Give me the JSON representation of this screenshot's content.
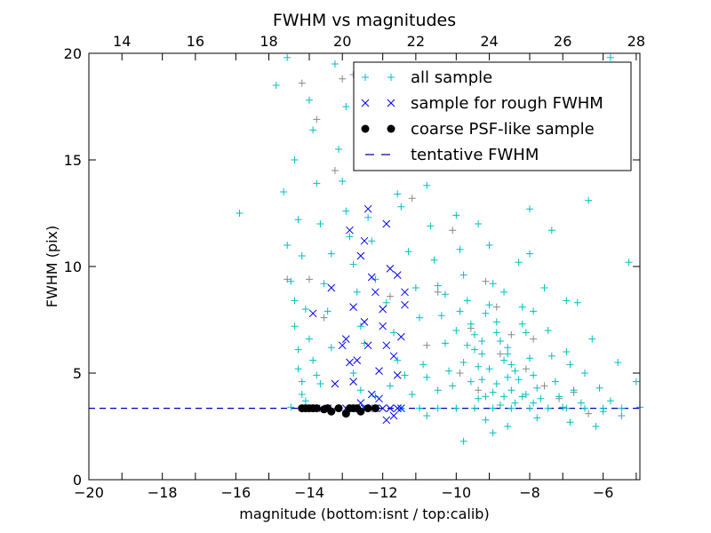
{
  "chart_data": {
    "type": "scatter",
    "title": "FWHM vs magnitudes",
    "xlabel": "magnitude (bottom:isnt / top:calib)",
    "ylabel": "FWHM (pix)",
    "xlim": [
      -20,
      -5
    ],
    "ylim": [
      0,
      20
    ],
    "top_xlim": [
      13.1,
      28.1
    ],
    "xticks": [
      -20,
      -18,
      -16,
      -14,
      -12,
      -10,
      -8,
      -6
    ],
    "xtick_labels": [
      "−20",
      "−18",
      "−16",
      "−14",
      "−12",
      "−10",
      "−8",
      "−6"
    ],
    "top_xticks": [
      14,
      16,
      18,
      20,
      22,
      24,
      26,
      28
    ],
    "top_xtick_labels": [
      "14",
      "16",
      "18",
      "20",
      "22",
      "24",
      "26",
      "28"
    ],
    "yticks": [
      0,
      5,
      10,
      15,
      20
    ],
    "ytick_labels": [
      "0",
      "5",
      "10",
      "15",
      "20"
    ],
    "grid": false,
    "legend_position": "top-right",
    "legend": [
      {
        "label": "all sample",
        "marker": "plus",
        "color": "#00bfbf"
      },
      {
        "label": "sample for rough FWHM",
        "marker": "x",
        "color": "#0000ff"
      },
      {
        "label": "coarse PSF-like sample",
        "marker": "dot",
        "color": "#000000"
      },
      {
        "label": "tentative FWHM",
        "marker": "dash",
        "color": "#0000bb"
      }
    ],
    "tentative_fwhm": 3.35,
    "series": [
      {
        "name": "other sample",
        "marker": "plus",
        "color": "#888888",
        "points": [
          [
            -14.2,
            18.6
          ],
          [
            -13.8,
            16.9
          ],
          [
            -13.3,
            14.5
          ],
          [
            -12.8,
            19.0
          ],
          [
            -12.3,
            15.8
          ],
          [
            -11.2,
            13.2
          ],
          [
            -10.5,
            8.8
          ],
          [
            -10.1,
            11.7
          ],
          [
            -9.6,
            7.1
          ],
          [
            -9.2,
            9.3
          ],
          [
            -8.8,
            5.9
          ],
          [
            -8.5,
            6.8
          ],
          [
            -8.1,
            5.2
          ],
          [
            -7.6,
            4.4
          ],
          [
            -7.2,
            3.8
          ],
          [
            -6.8,
            4.1
          ],
          [
            -14.0,
            9.4
          ],
          [
            -13.6,
            7.6
          ],
          [
            -11.8,
            8.6
          ],
          [
            -10.8,
            6.3
          ],
          [
            -9.9,
            5.0
          ],
          [
            -9.4,
            4.2
          ],
          [
            -12.5,
            17.4
          ],
          [
            -13.1,
            18.8
          ],
          [
            -14.6,
            9.4
          ],
          [
            -8.9,
            8.1
          ],
          [
            -7.9,
            6.6
          ],
          [
            -6.4,
            3.1
          ]
        ]
      },
      {
        "name": "all sample",
        "marker": "plus",
        "color": "#00bfbf",
        "points": [
          [
            -15.9,
            12.5
          ],
          [
            -14.9,
            18.5
          ],
          [
            -14.7,
            13.5
          ],
          [
            -14.6,
            11.0
          ],
          [
            -14.5,
            9.3
          ],
          [
            -14.4,
            8.4
          ],
          [
            -14.4,
            7.2
          ],
          [
            -14.3,
            6.1
          ],
          [
            -14.3,
            5.2
          ],
          [
            -14.2,
            4.6
          ],
          [
            -14.2,
            4.0
          ],
          [
            -14.1,
            3.7
          ],
          [
            -14.6,
            19.8
          ],
          [
            -14.4,
            15.0
          ],
          [
            -14.3,
            12.2
          ],
          [
            -14.2,
            10.5
          ],
          [
            -14.1,
            8.0
          ],
          [
            -14.0,
            6.6
          ],
          [
            -13.9,
            5.6
          ],
          [
            -13.8,
            4.9
          ],
          [
            -14.0,
            17.8
          ],
          [
            -13.9,
            16.4
          ],
          [
            -13.8,
            13.9
          ],
          [
            -13.7,
            12.0
          ],
          [
            -13.6,
            9.2
          ],
          [
            -13.5,
            7.9
          ],
          [
            -13.4,
            6.2
          ],
          [
            -13.3,
            19.5
          ],
          [
            -13.2,
            15.5
          ],
          [
            -13.1,
            14.0
          ],
          [
            -13.0,
            12.6
          ],
          [
            -12.9,
            11.4
          ],
          [
            -12.8,
            10.1
          ],
          [
            -12.7,
            8.8
          ],
          [
            -12.6,
            7.2
          ],
          [
            -12.5,
            6.4
          ],
          [
            -12.4,
            12.3
          ],
          [
            -12.3,
            11.2
          ],
          [
            -12.2,
            9.4
          ],
          [
            -11.9,
            8.3
          ],
          [
            -11.7,
            6.9
          ],
          [
            -11.6,
            5.6
          ],
          [
            -11.5,
            12.8
          ],
          [
            -11.3,
            10.7
          ],
          [
            -11.1,
            9.0
          ],
          [
            -11.0,
            7.6
          ],
          [
            -10.9,
            5.4
          ],
          [
            -10.8,
            13.8
          ],
          [
            -10.7,
            11.9
          ],
          [
            -10.6,
            10.3
          ],
          [
            -10.5,
            9.1
          ],
          [
            -10.4,
            7.7
          ],
          [
            -10.3,
            6.4
          ],
          [
            -10.2,
            5.1
          ],
          [
            -10.1,
            4.4
          ],
          [
            -10.0,
            12.4
          ],
          [
            -9.9,
            10.8
          ],
          [
            -9.8,
            9.6
          ],
          [
            -9.7,
            8.4
          ],
          [
            -9.6,
            7.3
          ],
          [
            -9.5,
            6.1
          ],
          [
            -9.4,
            5.3
          ],
          [
            -9.3,
            4.7
          ],
          [
            -9.2,
            3.9
          ],
          [
            -9.1,
            11.0
          ],
          [
            -9.0,
            9.2
          ],
          [
            -8.9,
            7.4
          ],
          [
            -8.8,
            6.5
          ],
          [
            -8.7,
            5.6
          ],
          [
            -8.6,
            4.8
          ],
          [
            -8.5,
            4.2
          ],
          [
            -8.4,
            3.6
          ],
          [
            -8.3,
            10.2
          ],
          [
            -8.2,
            8.1
          ],
          [
            -8.1,
            6.9
          ],
          [
            -8.0,
            5.7
          ],
          [
            -7.9,
            4.9
          ],
          [
            -7.8,
            4.3
          ],
          [
            -7.7,
            3.8
          ],
          [
            -7.6,
            9.0
          ],
          [
            -7.5,
            7.0
          ],
          [
            -7.4,
            5.8
          ],
          [
            -7.3,
            4.6
          ],
          [
            -7.2,
            3.9
          ],
          [
            -7.1,
            3.4
          ],
          [
            -7.0,
            8.4
          ],
          [
            -6.9,
            5.4
          ],
          [
            -6.8,
            4.2
          ],
          [
            -6.6,
            3.6
          ],
          [
            -6.4,
            13.1
          ],
          [
            -6.3,
            6.6
          ],
          [
            -6.1,
            4.3
          ],
          [
            -6.0,
            3.2
          ],
          [
            -5.8,
            3.7
          ],
          [
            -5.5,
            3.0
          ],
          [
            -5.3,
            10.2
          ],
          [
            -5.1,
            4.6
          ],
          [
            -5.0,
            3.4
          ],
          [
            -9.5,
            6.8
          ],
          [
            -9.3,
            5.9
          ],
          [
            -9.1,
            5.2
          ],
          [
            -8.9,
            4.5
          ],
          [
            -8.7,
            3.9
          ],
          [
            -8.5,
            5.4
          ],
          [
            -8.3,
            4.7
          ],
          [
            -8.1,
            4.0
          ],
          [
            -9.8,
            5.5
          ],
          [
            -9.6,
            4.6
          ],
          [
            -9.4,
            3.8
          ],
          [
            -9.0,
            4.1
          ],
          [
            -8.8,
            3.5
          ],
          [
            -8.6,
            6.2
          ],
          [
            -8.4,
            5.1
          ],
          [
            -8.2,
            3.9
          ],
          [
            -7.9,
            3.6
          ],
          [
            -10.5,
            4.2
          ],
          [
            -10.8,
            4.8
          ],
          [
            -11.2,
            4.0
          ],
          [
            -11.8,
            4.4
          ],
          [
            -12.2,
            3.9
          ],
          [
            -10.0,
            7.0
          ],
          [
            -9.7,
            6.3
          ],
          [
            -9.2,
            7.8
          ],
          [
            -8.0,
            10.6
          ],
          [
            -7.4,
            11.7
          ],
          [
            -6.7,
            8.3
          ],
          [
            -5.6,
            5.5
          ],
          [
            -7.0,
            6.0
          ],
          [
            -6.5,
            5.0
          ],
          [
            -12.0,
            18.0
          ],
          [
            -11.0,
            15.8
          ],
          [
            -10.2,
            14.8
          ],
          [
            -9.4,
            12.0
          ],
          [
            -8.0,
            12.7
          ],
          [
            -7.6,
            14.7
          ],
          [
            -6.8,
            16.8
          ],
          [
            -5.8,
            19.8
          ],
          [
            -7.3,
            19.1
          ],
          [
            -8.5,
            15.4
          ],
          [
            -11.6,
            13.4
          ],
          [
            -13.0,
            17.5
          ],
          [
            -12.6,
            16.0
          ],
          [
            -13.4,
            10.6
          ],
          [
            -12.8,
            5.0
          ],
          [
            -13.7,
            4.5
          ],
          [
            -14.5,
            3.4
          ],
          [
            -13.5,
            3.35
          ],
          [
            -12.5,
            3.35
          ],
          [
            -11.5,
            3.35
          ],
          [
            -11.0,
            3.35
          ],
          [
            -10.5,
            3.35
          ],
          [
            -10.0,
            3.35
          ],
          [
            -9.5,
            3.35
          ],
          [
            -9.0,
            3.35
          ],
          [
            -8.5,
            3.35
          ],
          [
            -8.0,
            3.35
          ],
          [
            -7.5,
            3.35
          ],
          [
            -7.0,
            3.35
          ],
          [
            -6.5,
            3.35
          ],
          [
            -6.0,
            3.35
          ],
          [
            -5.5,
            3.35
          ],
          [
            -9.2,
            2.8
          ],
          [
            -8.6,
            2.5
          ],
          [
            -9.8,
            1.8
          ],
          [
            -7.8,
            2.9
          ],
          [
            -6.9,
            2.7
          ],
          [
            -6.2,
            2.5
          ],
          [
            -10.8,
            3.0
          ],
          [
            -9.0,
            2.2
          ],
          [
            -12.6,
            4.2
          ],
          [
            -11.4,
            4.9
          ],
          [
            -8.7,
            8.8
          ],
          [
            -9.1,
            8.2
          ],
          [
            -10.3,
            8.7
          ],
          [
            -9.9,
            7.9
          ],
          [
            -8.2,
            7.3
          ],
          [
            -7.9,
            7.9
          ],
          [
            -9.3,
            6.5
          ],
          [
            -8.6,
            5.9
          ],
          [
            -8.9,
            6.9
          ]
        ]
      },
      {
        "name": "sample for rough FWHM",
        "marker": "x",
        "color": "#0000ff",
        "points": [
          [
            -13.9,
            7.8
          ],
          [
            -13.4,
            9.0
          ],
          [
            -13.3,
            4.5
          ],
          [
            -13.1,
            6.3
          ],
          [
            -13.0,
            6.6
          ],
          [
            -12.9,
            11.7
          ],
          [
            -12.8,
            8.1
          ],
          [
            -12.7,
            5.6
          ],
          [
            -12.6,
            10.5
          ],
          [
            -12.5,
            11.2
          ],
          [
            -12.4,
            12.7
          ],
          [
            -12.3,
            9.5
          ],
          [
            -12.2,
            8.8
          ],
          [
            -12.1,
            5.1
          ],
          [
            -12.0,
            8.0
          ],
          [
            -11.9,
            12.0
          ],
          [
            -11.8,
            9.9
          ],
          [
            -11.6,
            9.6
          ],
          [
            -11.5,
            6.7
          ],
          [
            -11.4,
            8.8
          ],
          [
            -12.4,
            6.3
          ],
          [
            -12.0,
            7.2
          ],
          [
            -11.7,
            5.8
          ],
          [
            -11.6,
            4.9
          ],
          [
            -12.8,
            4.6
          ],
          [
            -12.3,
            4.0
          ],
          [
            -12.1,
            3.8
          ],
          [
            -11.9,
            2.8
          ],
          [
            -11.7,
            3.0
          ],
          [
            -12.6,
            3.6
          ],
          [
            -12.2,
            3.35
          ],
          [
            -13.5,
            3.35
          ],
          [
            -13.0,
            3.35
          ],
          [
            -12.5,
            3.35
          ],
          [
            -12.0,
            3.35
          ],
          [
            -11.8,
            3.35
          ],
          [
            -11.6,
            3.35
          ],
          [
            -11.5,
            3.35
          ],
          [
            -13.8,
            3.35
          ],
          [
            -14.1,
            3.35
          ],
          [
            -11.4,
            8.2
          ],
          [
            -12.5,
            7.4
          ],
          [
            -11.9,
            6.3
          ],
          [
            -12.9,
            5.5
          ]
        ]
      },
      {
        "name": "coarse PSF-like sample",
        "marker": "dot",
        "color": "#000000",
        "points": [
          [
            -14.2,
            3.35
          ],
          [
            -14.0,
            3.35
          ],
          [
            -13.8,
            3.35
          ],
          [
            -13.6,
            3.3
          ],
          [
            -13.4,
            3.2
          ],
          [
            -13.2,
            3.35
          ],
          [
            -13.0,
            3.1
          ],
          [
            -12.9,
            3.35
          ],
          [
            -12.7,
            3.35
          ],
          [
            -12.6,
            3.2
          ],
          [
            -12.4,
            3.35
          ],
          [
            -12.2,
            3.35
          ],
          [
            -13.5,
            3.35
          ],
          [
            -13.9,
            3.35
          ],
          [
            -14.1,
            3.35
          ],
          [
            -12.8,
            3.35
          ]
        ]
      }
    ]
  }
}
